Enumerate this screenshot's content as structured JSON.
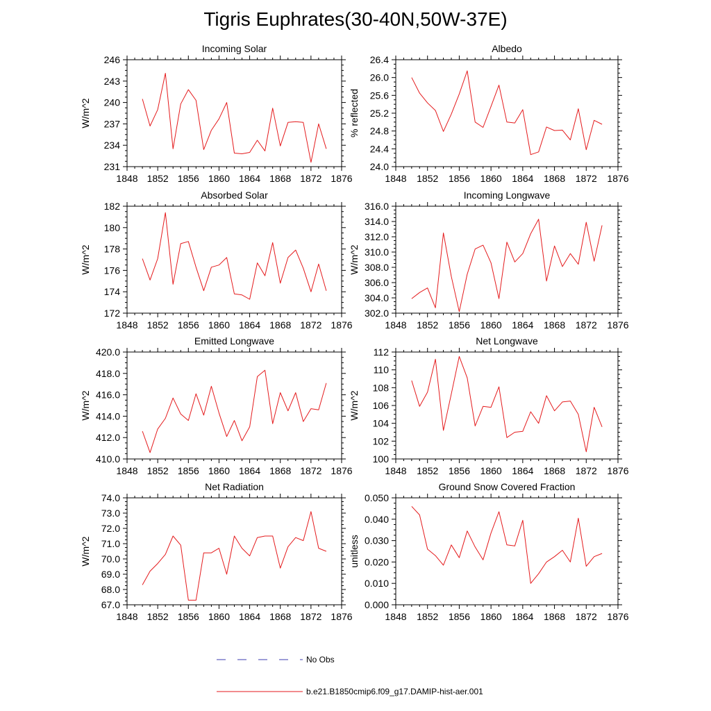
{
  "title": "Tigris Euphrates(30-40N,50W-37E)",
  "legend": [
    {
      "label": "No Obs",
      "color": "#3b3bb0",
      "style": "dashed"
    },
    {
      "label": "b.e21.B1850cmip6.f09_g17.DAMIP-hist-aer.001",
      "color": "#e41a1c",
      "style": "solid"
    }
  ],
  "chart_data": [
    {
      "type": "line",
      "title": "Incoming Solar",
      "ylabel": "W/m^2",
      "xlim": [
        1848,
        1876
      ],
      "xticks": [
        1848,
        1852,
        1856,
        1860,
        1864,
        1868,
        1872,
        1876
      ],
      "ylim": [
        231,
        246
      ],
      "yticks": [
        "231",
        "234",
        "237",
        "240",
        "243",
        "246"
      ],
      "x": [
        1850,
        1851,
        1852,
        1853,
        1854,
        1855,
        1856,
        1857,
        1858,
        1859,
        1860,
        1861,
        1862,
        1863,
        1864,
        1865,
        1866,
        1867,
        1868,
        1869,
        1870,
        1871,
        1872,
        1873,
        1874
      ],
      "series": [
        {
          "color": "#e41a1c",
          "values": [
            240.5,
            236.7,
            239.0,
            244.1,
            233.5,
            239.8,
            241.8,
            240.3,
            233.4,
            236.1,
            237.7,
            240.0,
            232.9,
            232.8,
            233.0,
            234.7,
            233.2,
            239.2,
            233.9,
            237.2,
            237.3,
            237.2,
            231.6,
            237.0,
            233.5
          ]
        }
      ]
    },
    {
      "type": "line",
      "title": "Albedo",
      "ylabel": "% reflected",
      "xlim": [
        1848,
        1876
      ],
      "xticks": [
        1848,
        1852,
        1856,
        1860,
        1864,
        1868,
        1872,
        1876
      ],
      "ylim": [
        24.0,
        26.4
      ],
      "yticks": [
        "24.0",
        "24.4",
        "24.8",
        "25.2",
        "25.6",
        "26.0",
        "26.4"
      ],
      "x": [
        1850,
        1851,
        1852,
        1853,
        1854,
        1855,
        1856,
        1857,
        1858,
        1859,
        1860,
        1861,
        1862,
        1863,
        1864,
        1865,
        1866,
        1867,
        1868,
        1869,
        1870,
        1871,
        1872,
        1873,
        1874
      ],
      "series": [
        {
          "color": "#e41a1c",
          "values": [
            26.0,
            25.65,
            25.43,
            25.26,
            24.79,
            25.18,
            25.63,
            26.15,
            25.0,
            24.88,
            25.35,
            25.83,
            25.0,
            24.98,
            25.28,
            24.27,
            24.33,
            24.89,
            24.81,
            24.82,
            24.6,
            25.3,
            24.38,
            25.04,
            24.95
          ]
        }
      ]
    },
    {
      "type": "line",
      "title": "Absorbed Solar",
      "ylabel": "W/m^2",
      "xlim": [
        1848,
        1876
      ],
      "xticks": [
        1848,
        1852,
        1856,
        1860,
        1864,
        1868,
        1872,
        1876
      ],
      "ylim": [
        172,
        182
      ],
      "yticks": [
        "172",
        "174",
        "176",
        "178",
        "180",
        "182"
      ],
      "x": [
        1850,
        1851,
        1852,
        1853,
        1854,
        1855,
        1856,
        1857,
        1858,
        1859,
        1860,
        1861,
        1862,
        1863,
        1864,
        1865,
        1866,
        1867,
        1868,
        1869,
        1870,
        1871,
        1872,
        1873,
        1874
      ],
      "series": [
        {
          "color": "#e41a1c",
          "values": [
            177.1,
            175.1,
            177.1,
            181.4,
            174.7,
            178.5,
            178.7,
            176.3,
            174.1,
            176.3,
            176.5,
            177.2,
            173.8,
            173.7,
            173.3,
            176.7,
            175.5,
            178.6,
            174.8,
            177.2,
            177.9,
            176.2,
            174.0,
            176.6,
            174.1
          ]
        }
      ]
    },
    {
      "type": "line",
      "title": "Incoming Longwave",
      "ylabel": "W/m^2",
      "xlim": [
        1848,
        1876
      ],
      "xticks": [
        1848,
        1852,
        1856,
        1860,
        1864,
        1868,
        1872,
        1876
      ],
      "ylim": [
        302.0,
        316.0
      ],
      "yticks": [
        "302.0",
        "304.0",
        "306.0",
        "308.0",
        "310.0",
        "312.0",
        "314.0",
        "316.0"
      ],
      "x": [
        1850,
        1851,
        1852,
        1853,
        1854,
        1855,
        1856,
        1857,
        1858,
        1859,
        1860,
        1861,
        1862,
        1863,
        1864,
        1865,
        1866,
        1867,
        1868,
        1869,
        1870,
        1871,
        1872,
        1873,
        1874
      ],
      "series": [
        {
          "color": "#e41a1c",
          "values": [
            303.9,
            304.7,
            305.3,
            302.7,
            312.5,
            306.8,
            302.2,
            307.1,
            310.4,
            310.9,
            308.6,
            303.9,
            311.3,
            308.7,
            309.8,
            312.4,
            314.3,
            306.2,
            310.8,
            308.1,
            309.8,
            308.4,
            313.9,
            308.8,
            313.5
          ]
        }
      ]
    },
    {
      "type": "line",
      "title": "Emitted Longwave",
      "ylabel": "W/m^2",
      "xlim": [
        1848,
        1876
      ],
      "xticks": [
        1848,
        1852,
        1856,
        1860,
        1864,
        1868,
        1872,
        1876
      ],
      "ylim": [
        410.0,
        420.0
      ],
      "yticks": [
        "410.0",
        "412.0",
        "414.0",
        "416.0",
        "418.0",
        "420.0"
      ],
      "x": [
        1850,
        1851,
        1852,
        1853,
        1854,
        1855,
        1856,
        1857,
        1858,
        1859,
        1860,
        1861,
        1862,
        1863,
        1864,
        1865,
        1866,
        1867,
        1868,
        1869,
        1870,
        1871,
        1872,
        1873,
        1874
      ],
      "series": [
        {
          "color": "#e41a1c",
          "values": [
            412.6,
            410.6,
            412.8,
            413.8,
            415.7,
            414.2,
            413.6,
            416.1,
            414.1,
            416.8,
            414.3,
            412.1,
            413.6,
            411.7,
            413.0,
            417.7,
            418.3,
            413.3,
            416.2,
            414.5,
            416.2,
            413.5,
            414.7,
            414.6,
            417.1
          ]
        }
      ]
    },
    {
      "type": "line",
      "title": "Net Longwave",
      "ylabel": "W/m^2",
      "xlim": [
        1848,
        1876
      ],
      "xticks": [
        1848,
        1852,
        1856,
        1860,
        1864,
        1868,
        1872,
        1876
      ],
      "ylim": [
        100,
        112
      ],
      "yticks": [
        "100",
        "102",
        "104",
        "106",
        "108",
        "110",
        "112"
      ],
      "x": [
        1850,
        1851,
        1852,
        1853,
        1854,
        1855,
        1856,
        1857,
        1858,
        1859,
        1860,
        1861,
        1862,
        1863,
        1864,
        1865,
        1866,
        1867,
        1868,
        1869,
        1870,
        1871,
        1872,
        1873,
        1874
      ],
      "series": [
        {
          "color": "#e41a1c",
          "values": [
            108.8,
            105.9,
            107.5,
            111.2,
            103.2,
            107.3,
            111.5,
            109.1,
            103.7,
            105.9,
            105.8,
            108.1,
            102.4,
            103.0,
            103.1,
            105.3,
            104.0,
            107.1,
            105.4,
            106.4,
            106.5,
            105.0,
            100.8,
            105.8,
            103.6
          ]
        }
      ]
    },
    {
      "type": "line",
      "title": "Net Radiation",
      "ylabel": "W/m^2",
      "xlim": [
        1848,
        1876
      ],
      "xticks": [
        1848,
        1852,
        1856,
        1860,
        1864,
        1868,
        1872,
        1876
      ],
      "ylim": [
        67.0,
        74.0
      ],
      "yticks": [
        "67.0",
        "68.0",
        "69.0",
        "70.0",
        "71.0",
        "72.0",
        "73.0",
        "74.0"
      ],
      "x": [
        1850,
        1851,
        1852,
        1853,
        1854,
        1855,
        1856,
        1857,
        1858,
        1859,
        1860,
        1861,
        1862,
        1863,
        1864,
        1865,
        1866,
        1867,
        1868,
        1869,
        1870,
        1871,
        1872,
        1873,
        1874
      ],
      "series": [
        {
          "color": "#e41a1c",
          "values": [
            68.3,
            69.2,
            69.7,
            70.3,
            71.5,
            70.9,
            67.3,
            67.3,
            70.4,
            70.4,
            70.7,
            69.0,
            71.5,
            70.7,
            70.2,
            71.4,
            71.5,
            71.5,
            69.4,
            70.8,
            71.4,
            71.2,
            73.1,
            70.7,
            70.5
          ]
        }
      ]
    },
    {
      "type": "line",
      "title": "Ground Snow Covered Fraction",
      "ylabel": "unitless",
      "xlim": [
        1848,
        1876
      ],
      "xticks": [
        1848,
        1852,
        1856,
        1860,
        1864,
        1868,
        1872,
        1876
      ],
      "ylim": [
        0.0,
        0.05
      ],
      "yticks": [
        "0.000",
        "0.010",
        "0.020",
        "0.030",
        "0.040",
        "0.050"
      ],
      "x": [
        1850,
        1851,
        1852,
        1853,
        1854,
        1855,
        1856,
        1857,
        1858,
        1859,
        1860,
        1861,
        1862,
        1863,
        1864,
        1865,
        1866,
        1867,
        1868,
        1869,
        1870,
        1871,
        1872,
        1873,
        1874
      ],
      "series": [
        {
          "color": "#e41a1c",
          "values": [
            0.046,
            0.042,
            0.026,
            0.023,
            0.0185,
            0.028,
            0.022,
            0.0345,
            0.027,
            0.021,
            0.0335,
            0.0435,
            0.028,
            0.0275,
            0.0395,
            0.01,
            0.0145,
            0.02,
            0.0225,
            0.0255,
            0.02,
            0.0405,
            0.018,
            0.0225,
            0.024
          ]
        }
      ]
    }
  ]
}
